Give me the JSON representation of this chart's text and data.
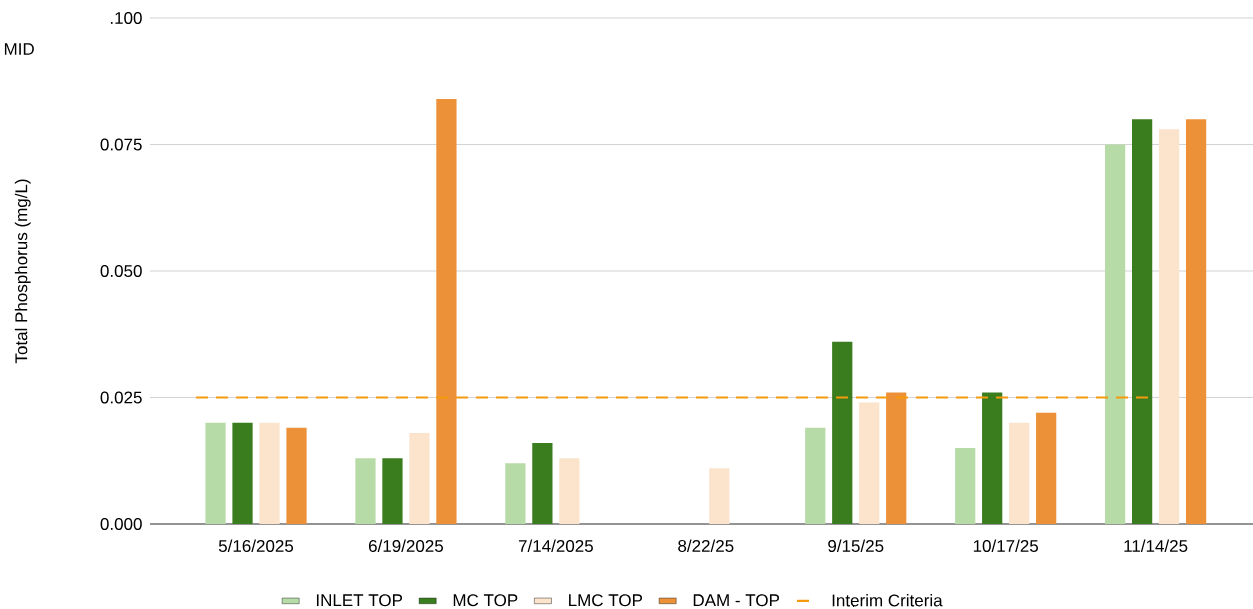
{
  "chart_data": {
    "type": "bar",
    "ylabel": "Total Phosphorus (mg/L)",
    "annotations": [
      "MID"
    ],
    "categories": [
      "5/16/2025",
      "6/19/2025",
      "7/14/2025",
      "8/22/25",
      "9/15/25",
      "10/17/25",
      "11/14/25"
    ],
    "series": [
      {
        "name": "INLET TOP",
        "color": "#b7dba6",
        "values": [
          0.02,
          0.013,
          0.012,
          null,
          0.019,
          0.015,
          0.075
        ]
      },
      {
        "name": "MC TOP",
        "color": "#3a7d1e",
        "values": [
          0.02,
          0.013,
          0.016,
          null,
          0.036,
          0.026,
          0.08
        ]
      },
      {
        "name": "LMC TOP",
        "color": "#fbe3cc",
        "values": [
          0.02,
          0.018,
          0.013,
          0.011,
          0.024,
          0.02,
          0.078
        ]
      },
      {
        "name": "DAM - TOP",
        "color": "#ec9138",
        "values": [
          0.019,
          0.084,
          null,
          null,
          0.026,
          0.022,
          0.08
        ]
      }
    ],
    "ref_lines": [
      {
        "axis": "y",
        "value": 0.025,
        "label": "Interim Criteria",
        "color": "#f59a0c",
        "line_style": "dashed"
      }
    ],
    "ylim": [
      0,
      0.1
    ],
    "yticks": [
      {
        "value": 0,
        "label": "0.000"
      },
      {
        "value": 0.025,
        "label": "0.025"
      },
      {
        "value": 0.05,
        "label": "0.050"
      },
      {
        "value": 0.075,
        "label": "0.075"
      },
      {
        "value": 0.1,
        "label": ".100"
      }
    ],
    "grid": "y",
    "legend": "bottom"
  }
}
